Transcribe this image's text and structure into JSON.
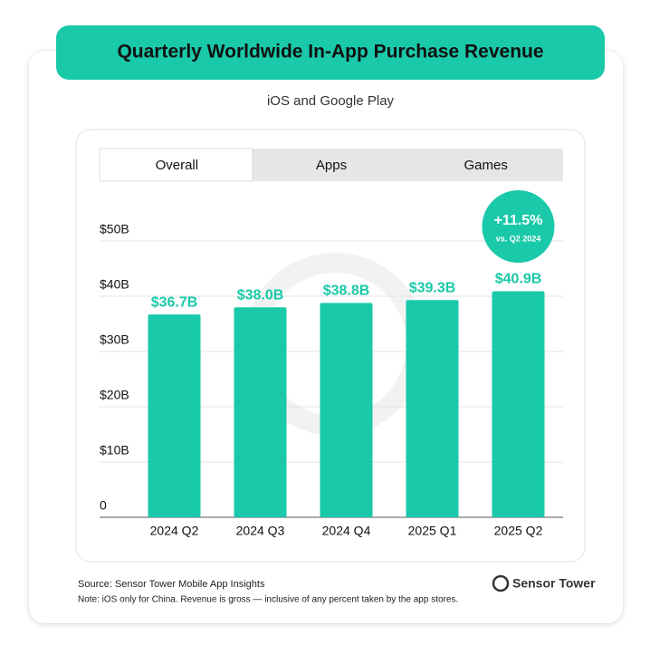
{
  "chart_data": {
    "type": "bar",
    "title": "Quarterly Worldwide In-App Purchase Revenue",
    "subtitle": "iOS and Google Play",
    "categories": [
      "2024 Q2",
      "2024 Q3",
      "2024 Q4",
      "2025 Q1",
      "2025 Q2"
    ],
    "values": [
      36.7,
      38.0,
      38.8,
      39.3,
      40.9
    ],
    "value_labels": [
      "$36.7B",
      "$38.0B",
      "$38.8B",
      "$39.3B",
      "$40.9B"
    ],
    "color": "#19c9a9",
    "ylim": [
      0,
      50
    ],
    "yticks": [
      0,
      {
        "value": 10,
        "label": "$10B"
      },
      {
        "value": 20,
        "label": "$20B"
      },
      {
        "value": 30,
        "label": "$30B"
      },
      {
        "value": 40,
        "label": "$40B"
      },
      {
        "value": 50,
        "label": "$50B"
      }
    ],
    "grid": true,
    "annotation": {
      "text": "+11.5%",
      "subtext": "vs. Q2 2024"
    }
  },
  "tabs": [
    "Overall",
    "Apps",
    "Games"
  ],
  "source": "Source: Sensor Tower Mobile App Insights",
  "note": "Note: iOS only for China. Revenue is gross — inclusive of any percent taken by the app stores.",
  "brand": "Sensor Tower"
}
